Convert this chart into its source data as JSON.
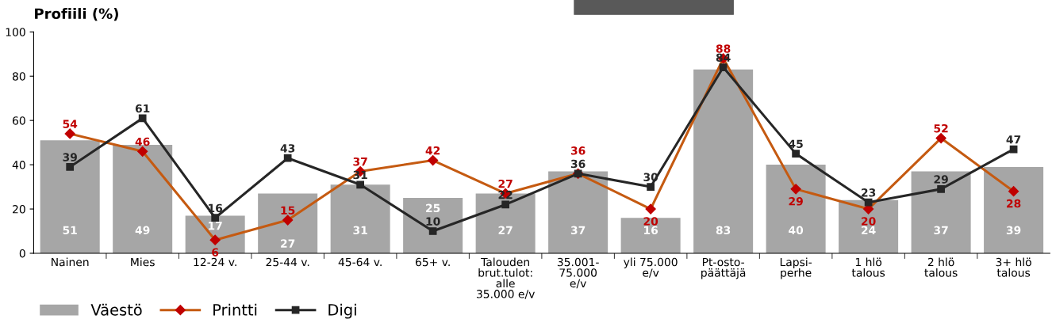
{
  "chart_data": {
    "type": "bar",
    "title": "Profiili (%)",
    "categories": [
      "Nainen",
      "Mies",
      "12-24 v.",
      "25-44 v.",
      "45-64 v.",
      "65+ v.",
      "Talouden\nbrut.tulot:\nalle\n35.000 e/v",
      "35.001-\n75.000\ne/v",
      "yli 75.000\ne/v",
      "Pt-osto-\npäättäjä",
      "Lapsi-\nperhe",
      "1 hlö\ntalous",
      "2 hlö\ntalous",
      "3+ hlö\ntalous"
    ],
    "series": [
      {
        "name": "Väestö",
        "type": "bar",
        "color": "#a6a6a6",
        "values": [
          51,
          49,
          17,
          27,
          31,
          25,
          27,
          37,
          16,
          83,
          40,
          24,
          37,
          39
        ]
      },
      {
        "name": "Printti",
        "type": "line",
        "color": "#c55a11",
        "marker": "diamond",
        "values": [
          54,
          46,
          6,
          15,
          37,
          42,
          27,
          36,
          20,
          88,
          29,
          20,
          52,
          28
        ]
      },
      {
        "name": "Digi",
        "type": "line",
        "color": "#262626",
        "marker": "square",
        "values": [
          39,
          61,
          16,
          43,
          31,
          10,
          22,
          36,
          30,
          84,
          45,
          23,
          29,
          47
        ]
      }
    ],
    "ylim": [
      0,
      100
    ],
    "yticks": [
      0,
      20,
      40,
      60,
      80,
      100
    ],
    "grid": false,
    "legend": "bottom left",
    "data_labels": true
  }
}
